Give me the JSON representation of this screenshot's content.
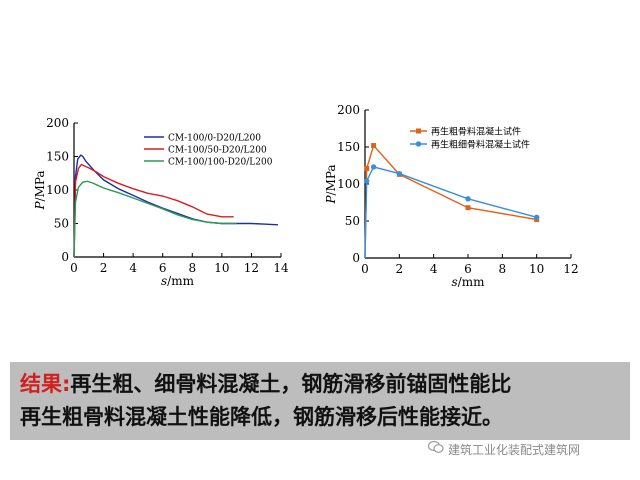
{
  "chart_data": [
    {
      "type": "line",
      "ylabel": "P/MPa",
      "xlabel": "s/mm",
      "xlim": [
        0,
        14
      ],
      "ylim": [
        0,
        200
      ],
      "xticks": [
        "0",
        "2",
        "4",
        "6",
        "8",
        "10",
        "12",
        "14"
      ],
      "yticks": [
        "0",
        "50",
        "100",
        "150",
        "200"
      ],
      "legend_position": "top-right",
      "series": [
        {
          "name": "CM-100/0-D20/L200",
          "color": "#1a2fb0",
          "x": [
            0,
            0.1,
            0.25,
            0.45,
            0.6,
            0.8,
            1.0,
            1.4,
            2,
            3,
            4,
            5,
            6,
            7,
            8,
            9,
            10,
            11,
            12,
            13,
            13.8
          ],
          "y": [
            0,
            120,
            146,
            152,
            150,
            143,
            138,
            128,
            115,
            102,
            92,
            82,
            73,
            65,
            57,
            52,
            50,
            50,
            50,
            49,
            48
          ]
        },
        {
          "name": "CM-100/50-D20/L200",
          "color": "#d81f1f",
          "x": [
            0,
            0.1,
            0.3,
            0.5,
            0.7,
            1,
            1.5,
            2,
            3,
            4,
            5,
            6,
            7,
            8,
            9,
            10,
            10.8
          ],
          "y": [
            0,
            112,
            132,
            138,
            136,
            133,
            127,
            120,
            110,
            102,
            95,
            91,
            84,
            75,
            64,
            60,
            60
          ]
        },
        {
          "name": "CM-100/100-D20/L200",
          "color": "#2a9a55",
          "x": [
            0,
            0.1,
            0.3,
            0.6,
            0.9,
            1.2,
            1.6,
            2,
            3,
            4,
            5,
            6,
            7,
            8,
            9,
            10,
            11
          ],
          "y": [
            0,
            82,
            104,
            112,
            113,
            111,
            107,
            103,
            96,
            88,
            80,
            72,
            63,
            56,
            52,
            50,
            50
          ]
        }
      ]
    },
    {
      "type": "line",
      "ylabel": "P/MPa",
      "xlabel": "s/mm",
      "xlim": [
        0,
        12
      ],
      "ylim": [
        0,
        200
      ],
      "xticks": [
        "0",
        "2",
        "4",
        "6",
        "8",
        "10",
        "12"
      ],
      "yticks": [
        "0",
        "50",
        "100",
        "150",
        "200"
      ],
      "legend_position": "top-right",
      "series": [
        {
          "name": "再生粗骨料混凝土试件",
          "color": "#e2621b",
          "marker": "square",
          "x": [
            0,
            0.1,
            0.5,
            2,
            6,
            10
          ],
          "y": [
            0,
            121,
            152,
            113,
            68,
            52
          ]
        },
        {
          "name": "再生粗细骨料混凝土试件",
          "color": "#3a8fdc",
          "marker": "circle",
          "x": [
            0,
            0.1,
            0.5,
            2,
            6,
            10
          ],
          "y": [
            0,
            104,
            123,
            114,
            80,
            55
          ]
        }
      ]
    }
  ],
  "conclusion": {
    "label": "结果:",
    "line1_rest": "再生粗、细骨料混凝土，钢筋滑移前锚固性能比",
    "line2": "再生粗骨料混凝土性能降低，钢筋滑移后性能接近。"
  },
  "watermark": "建筑工业化装配式建筑网"
}
